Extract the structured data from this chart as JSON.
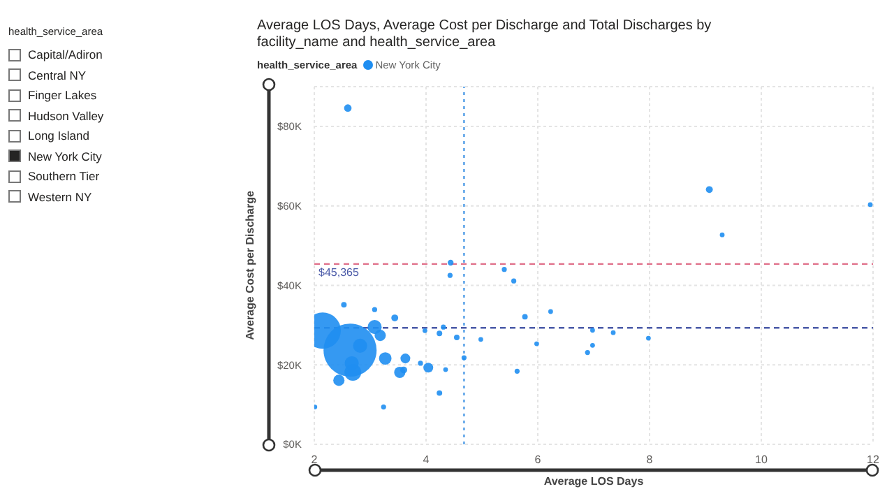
{
  "chart_data": [
    {
      "type": "bubble",
      "title": "Average LOS Days, Average Cost per Discharge and Total Discharges by facility_name and health_service_area",
      "xlabel": "Average LOS Days",
      "ylabel": "Average Cost per Discharge",
      "legend_title": "health_service_area",
      "legend": "top left",
      "grid": true,
      "xlim": [
        2,
        12
      ],
      "xticks": [
        2,
        4,
        6,
        8,
        10,
        12
      ],
      "ylim": [
        0,
        90000
      ],
      "yticks": [
        {
          "value": 0,
          "label": "$0K"
        },
        {
          "value": 20000,
          "label": "$20K"
        },
        {
          "value": 40000,
          "label": "$40K"
        },
        {
          "value": 60000,
          "label": "$60K"
        },
        {
          "value": 80000,
          "label": "$80K"
        }
      ],
      "ref_lines": [
        {
          "axis": "y",
          "value": 45365,
          "label": "$45,365",
          "color": "#e0708a",
          "line_style": "dashed"
        },
        {
          "axis": "y",
          "value": 29300,
          "color": "#4b5aa8",
          "line_style": "dashed"
        },
        {
          "axis": "x",
          "value": 4.68,
          "color": "#4f9ce6",
          "line_style": "dotted"
        }
      ],
      "series": [
        {
          "name": "New York City",
          "color": "#1f8ef1",
          "x": [
            2.6,
            4.44,
            4.43,
            5.4,
            5.57,
            2.15,
            2.64,
            2.82,
            2.69,
            2.67,
            2.44,
            2.53,
            3.08,
            3.08,
            3.18,
            3.44,
            3.27,
            3.63,
            3.53,
            3.6,
            4.04,
            3.9,
            4.35,
            3.98,
            4.24,
            4.31,
            4.55,
            4.24,
            3.24,
            2.01,
            4.68,
            4.98,
            5.63,
            5.77,
            9.07,
            9.3,
            11.95,
            6.23,
            5.98,
            6.98,
            6.98,
            6.89,
            7.35,
            7.98
          ],
          "values": [
            84600,
            45700,
            42500,
            44000,
            41100,
            28600,
            23700,
            24800,
            18100,
            20400,
            16100,
            35100,
            33900,
            29500,
            27400,
            31800,
            21600,
            21600,
            18100,
            18700,
            19300,
            20400,
            18800,
            28600,
            27900,
            29500,
            26900,
            12900,
            9400,
            9400,
            21800,
            26400,
            18400,
            32100,
            64100,
            52700,
            60300,
            33400,
            25300,
            28700,
            24900,
            23100,
            28100,
            26700
          ],
          "sizes": [
            0.02,
            0.012,
            0.009,
            0.009,
            0.009,
            0.47,
            1,
            0.07,
            0.1,
            0.07,
            0.045,
            0.011,
            0.009,
            0.07,
            0.045,
            0.017,
            0.056,
            0.034,
            0.045,
            0.017,
            0.034,
            0.009,
            0.008,
            0.008,
            0.011,
            0.009,
            0.011,
            0.011,
            0.009,
            0.008,
            0.009,
            0.008,
            0.009,
            0.011,
            0.017,
            0.008,
            0.008,
            0.008,
            0.008,
            0.008,
            0.008,
            0.009,
            0.008,
            0.008
          ]
        }
      ]
    },
    {
      "type": "other",
      "title": "health_service_area",
      "annotations": [
        "Capital/Adiron",
        "Central NY",
        "Finger Lakes",
        "Hudson Valley",
        "Long Island",
        "New York City",
        "Southern Tier",
        "Western NY"
      ]
    }
  ]
}
